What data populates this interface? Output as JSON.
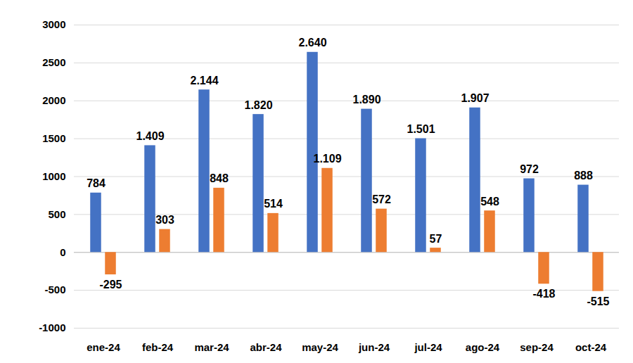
{
  "chart_data": {
    "type": "bar",
    "categories": [
      "ene-24",
      "feb-24",
      "mar-24",
      "abr-24",
      "may-24",
      "jun-24",
      "jul-24",
      "ago-24",
      "sep-24",
      "oct-24"
    ],
    "series": [
      {
        "color": "#4472c4",
        "values": [
          784,
          1409,
          2144,
          1820,
          2640,
          1890,
          1501,
          1907,
          972,
          888
        ],
        "value_labels": [
          "784",
          "1.409",
          "2.144",
          "1.820",
          "2.640",
          "1.890",
          "1.501",
          "1.907",
          "972",
          "888"
        ]
      },
      {
        "color": "#ed7d31",
        "values": [
          -295,
          303,
          848,
          514,
          1109,
          572,
          57,
          548,
          -418,
          -515
        ],
        "value_labels": [
          "-295",
          "303",
          "848",
          "514",
          "1.109",
          "572",
          "57",
          "548",
          "-418",
          "-515"
        ]
      }
    ],
    "ylim": [
      -1000,
      3000
    ],
    "yticks": [
      -1000,
      -500,
      0,
      500,
      1000,
      1500,
      2000,
      2500,
      3000
    ],
    "grid": true,
    "data_labels": true
  }
}
